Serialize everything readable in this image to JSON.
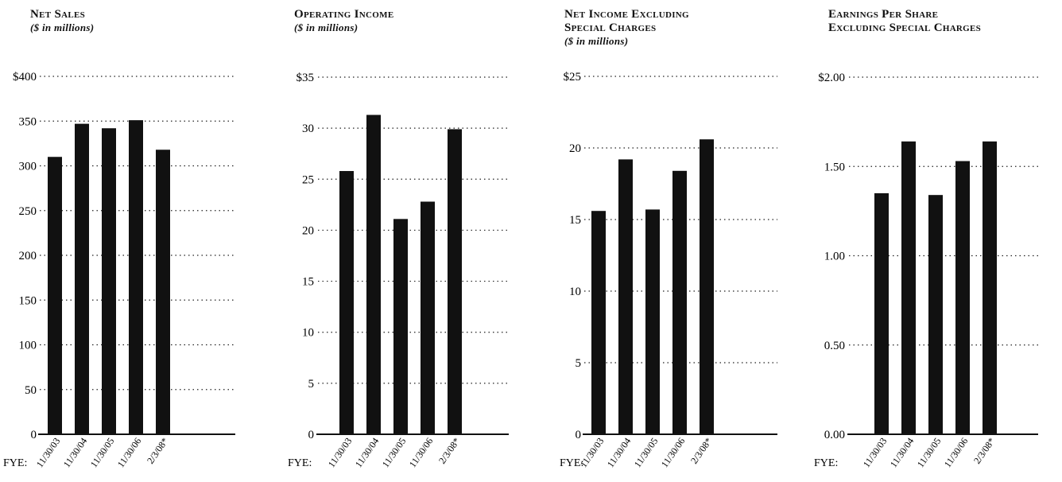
{
  "fye_label": "FYE:",
  "chart_data": [
    {
      "type": "bar",
      "title_lines": [
        "Net Sales"
      ],
      "unit": "($ in millions)",
      "categories": [
        "11/30/03",
        "11/30/04",
        "11/30/05",
        "11/30/06",
        "2/3/08*"
      ],
      "values": [
        310,
        347,
        342,
        351,
        318
      ],
      "ylim": [
        0,
        400
      ],
      "yticks": [
        0,
        50,
        100,
        150,
        200,
        250,
        300,
        350,
        400
      ],
      "ytick_labels": [
        "0",
        "50",
        "100",
        "150",
        "200",
        "250",
        "300",
        "350",
        "$400"
      ],
      "grid": true
    },
    {
      "type": "bar",
      "title_lines": [
        "Operating Income"
      ],
      "unit": "($ in millions)",
      "categories": [
        "11/30/03",
        "11/30/04",
        "11/30/05",
        "11/30/06",
        "2/3/08*"
      ],
      "values": [
        25.8,
        31.3,
        21.1,
        22.8,
        29.9
      ],
      "ylim": [
        0,
        35
      ],
      "yticks": [
        0,
        5,
        10,
        15,
        20,
        25,
        30,
        35
      ],
      "ytick_labels": [
        "0",
        "5",
        "10",
        "15",
        "20",
        "25",
        "30",
        "$35"
      ],
      "grid": true
    },
    {
      "type": "bar",
      "title_lines": [
        "Net Income Excluding",
        "Special Charges"
      ],
      "unit": "($ in millions)",
      "categories": [
        "11/30/03",
        "11/30/04",
        "11/30/05",
        "11/30/06",
        "2/3/08*"
      ],
      "values": [
        15.6,
        19.2,
        15.7,
        18.4,
        20.6
      ],
      "ylim": [
        0,
        25
      ],
      "yticks": [
        0,
        5,
        10,
        15,
        20,
        25
      ],
      "ytick_labels": [
        "0",
        "5",
        "10",
        "15",
        "20",
        "$25"
      ],
      "grid": true
    },
    {
      "type": "bar",
      "title_lines": [
        "Earnings Per Share",
        "Excluding Special Charges"
      ],
      "unit": "",
      "categories": [
        "11/30/03",
        "11/30/04",
        "11/30/05",
        "11/30/06",
        "2/3/08*"
      ],
      "values": [
        1.35,
        1.64,
        1.34,
        1.53,
        1.64
      ],
      "ylim": [
        0,
        2
      ],
      "yticks": [
        0,
        0.5,
        1,
        1.5,
        2
      ],
      "ytick_labels": [
        "0.00",
        "0.50",
        "1.00",
        "1.50",
        "$2.00"
      ],
      "grid": true
    }
  ]
}
